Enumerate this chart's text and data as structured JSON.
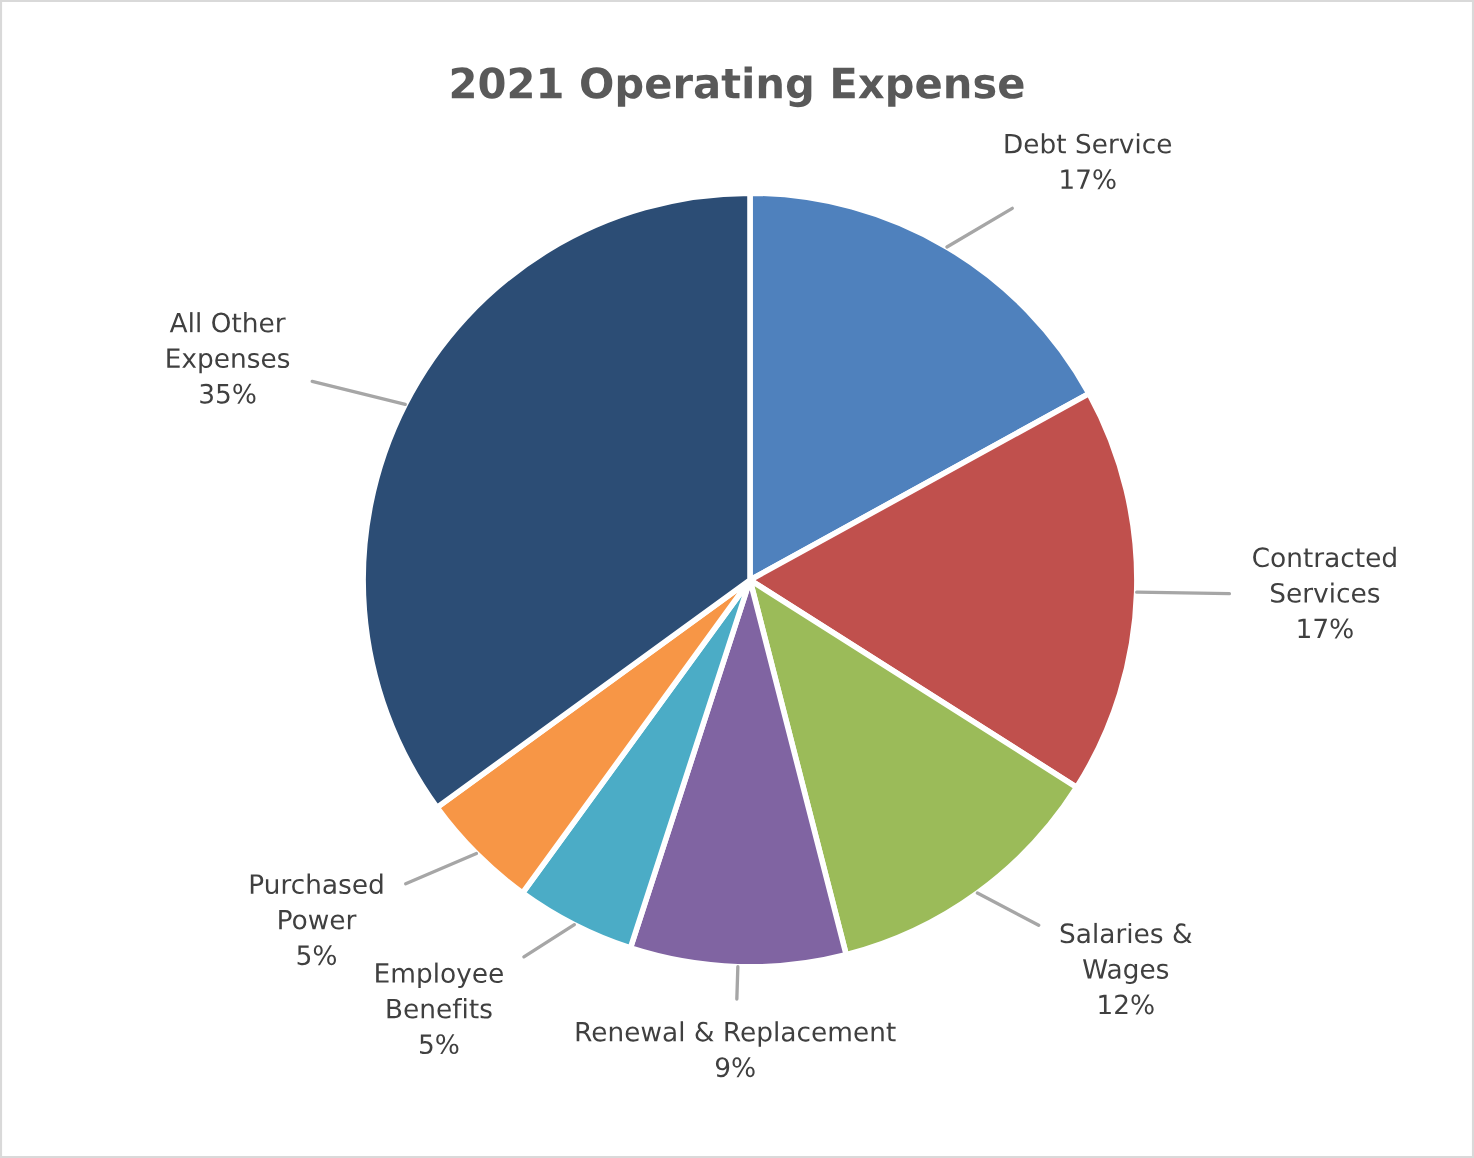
{
  "chart_data": {
    "type": "pie",
    "title": "2021 Operating Expense",
    "categories": [
      "Debt Service",
      "Contracted Services",
      "Salaries & Wages",
      "Renewal & Replacement",
      "Employee Benefits",
      "Purchased Power",
      "All Other Expenses"
    ],
    "values": [
      17,
      17,
      12,
      9,
      5,
      5,
      35
    ],
    "value_labels": [
      "17%",
      "17%",
      "12%",
      "9%",
      "5%",
      "5%",
      "35%"
    ],
    "colors": [
      "#4f81bd",
      "#c0504d",
      "#9bbb59",
      "#8064a2",
      "#4bacc6",
      "#f79646",
      "#2c4d75"
    ]
  }
}
